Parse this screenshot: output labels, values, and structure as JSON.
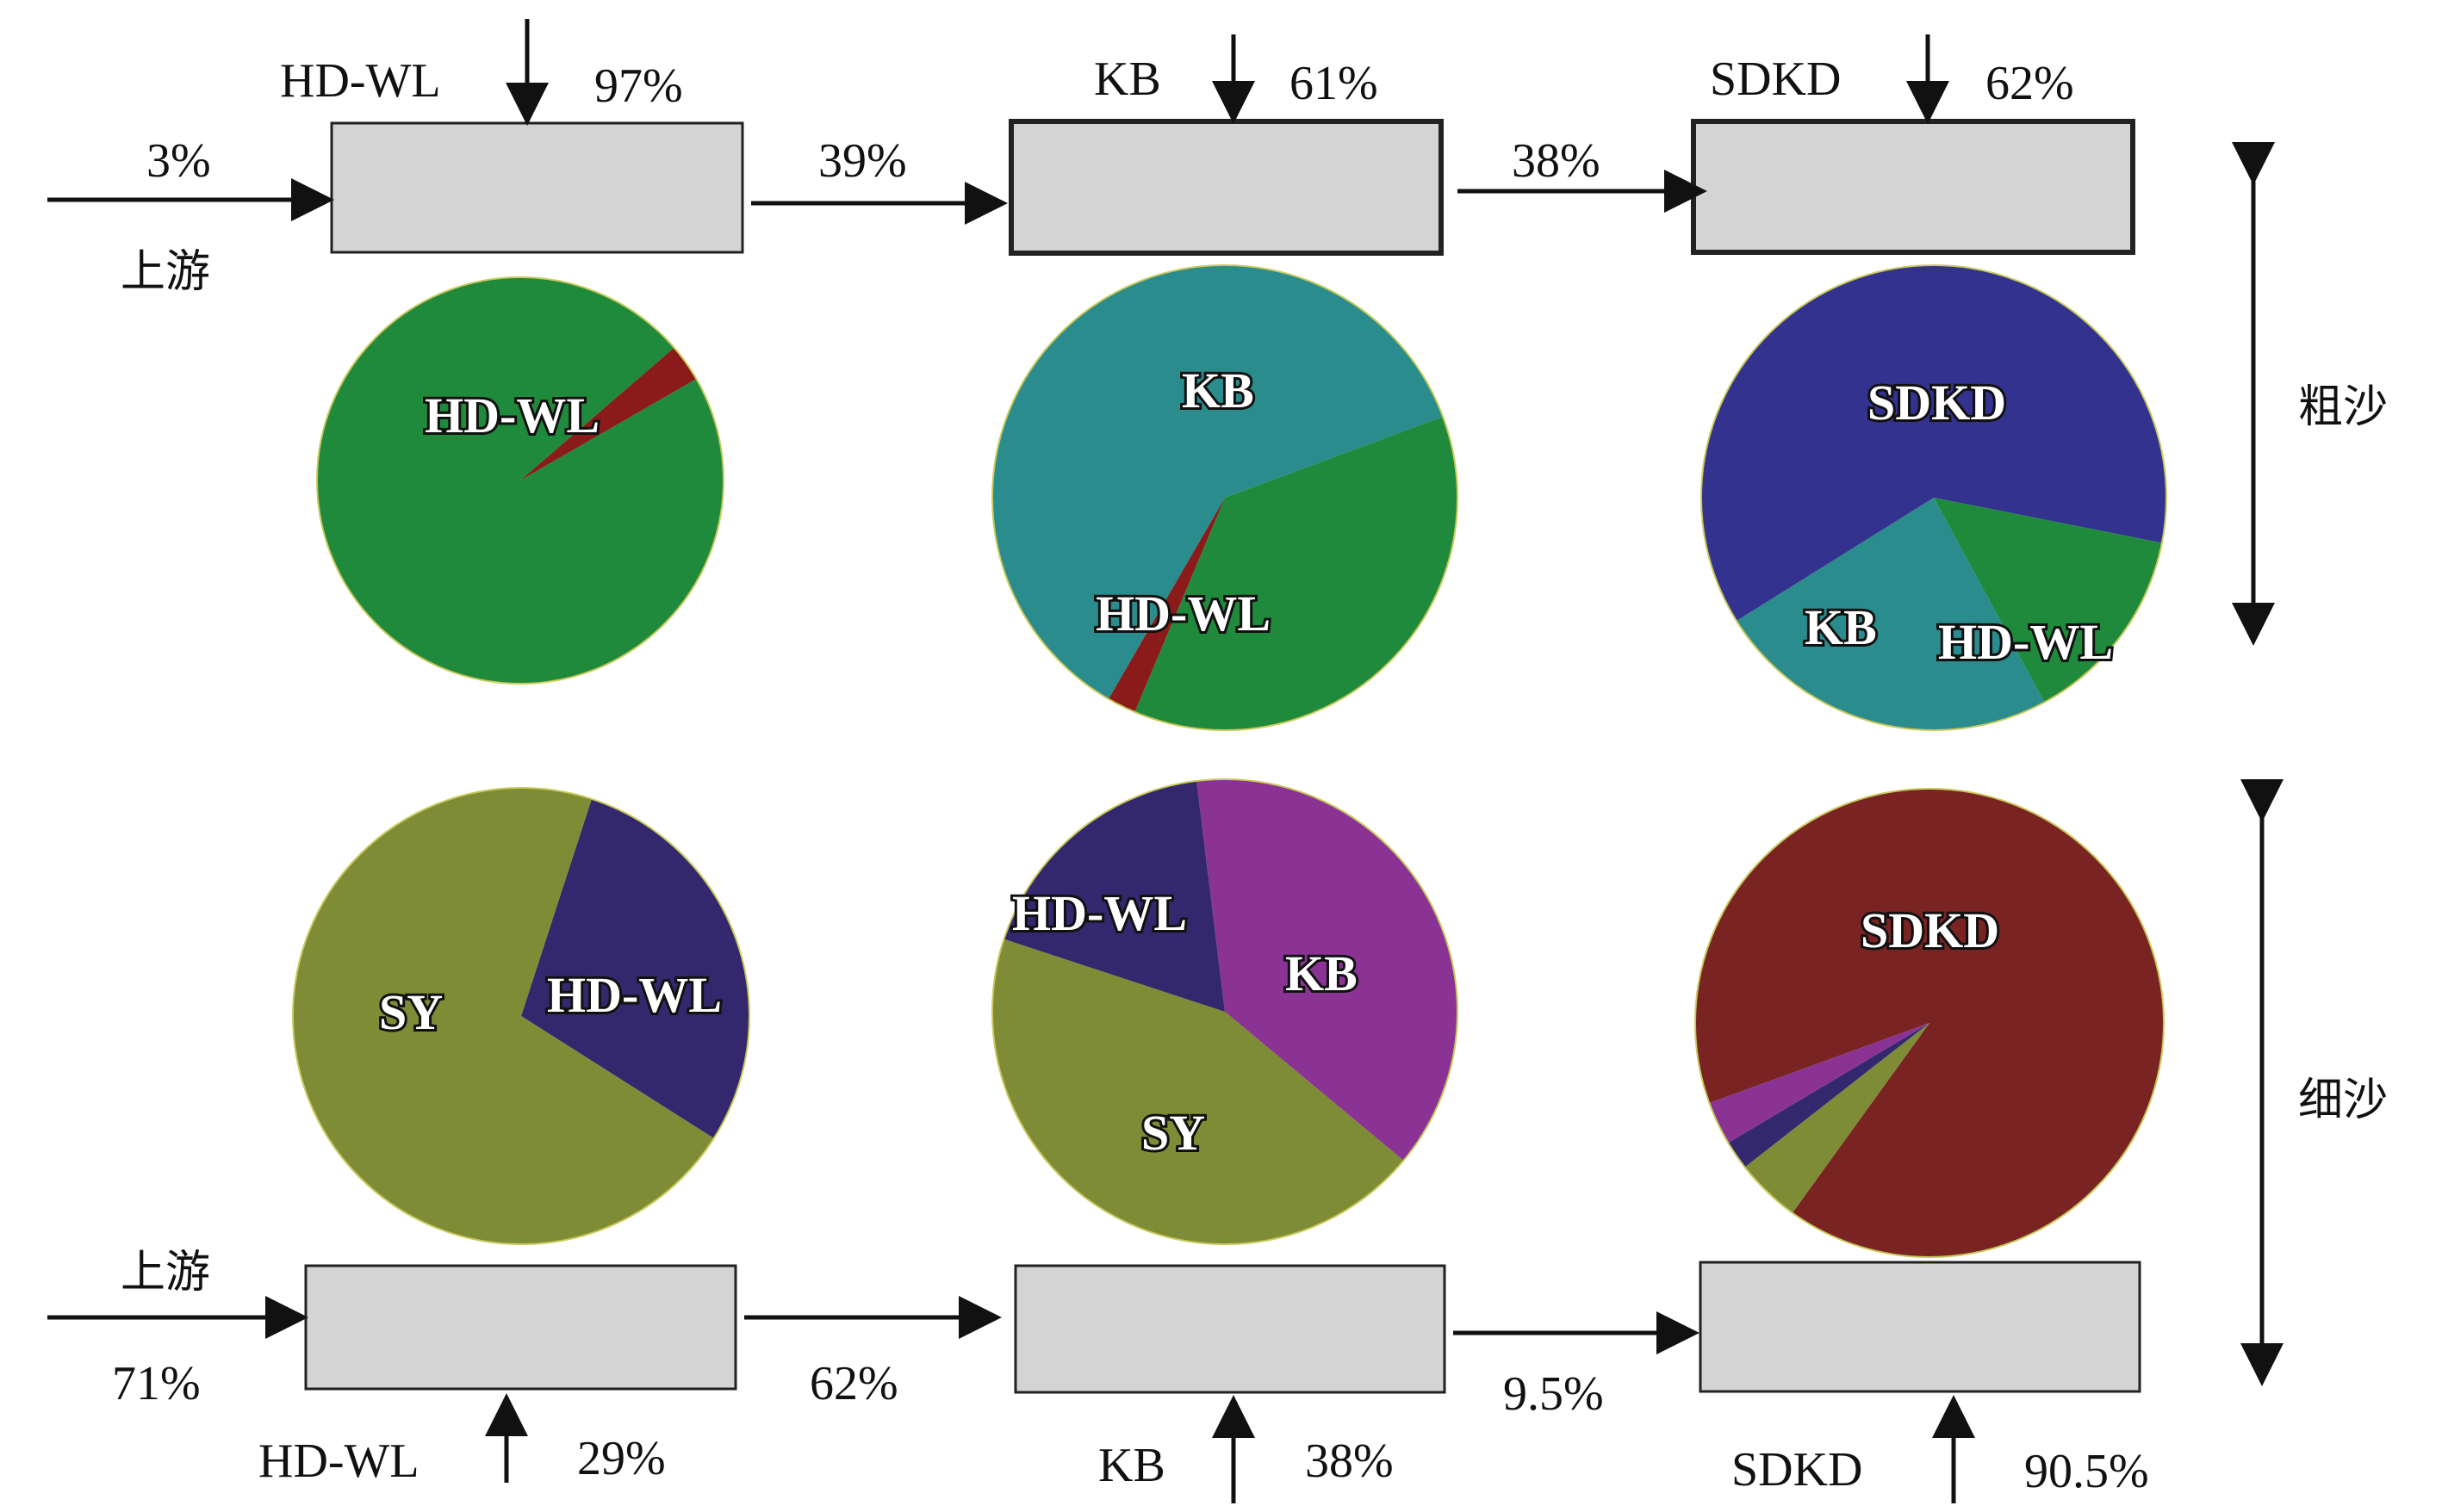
{
  "coarse": {
    "side_label": "粗沙",
    "upstream_label": "上游",
    "upstream_pct": "3%",
    "stations": [
      {
        "name": "HD-WL",
        "input_pct": "97%"
      },
      {
        "name": "KB",
        "input_pct": "61%"
      },
      {
        "name": "SDKD",
        "input_pct": "62%"
      }
    ],
    "transfer_pcts": [
      "39%",
      "38%"
    ],
    "pies": [
      {
        "labels": [
          "HD-WL"
        ],
        "slices": [
          {
            "name": "HD-WL",
            "value": 97,
            "color": "#1f8a3c"
          },
          {
            "name": "upstream",
            "value": 3,
            "color": "#8b1a1a"
          }
        ]
      },
      {
        "labels": [
          "KB",
          "HD-WL"
        ],
        "slices": [
          {
            "name": "KB",
            "value": 61,
            "color": "#2a8c8c"
          },
          {
            "name": "HD-WL",
            "value": 37,
            "color": "#1f8a3c"
          },
          {
            "name": "upstream",
            "value": 2,
            "color": "#8b1a1a"
          }
        ]
      },
      {
        "labels": [
          "SDKD",
          "KB",
          "HD-WL"
        ],
        "slices": [
          {
            "name": "SDKD",
            "value": 62,
            "color": "#33328f"
          },
          {
            "name": "HD-WL",
            "value": 14,
            "color": "#1f8a3c"
          },
          {
            "name": "KB",
            "value": 24,
            "color": "#2a8c8c"
          }
        ]
      }
    ]
  },
  "fine": {
    "side_label": "细沙",
    "upstream_label": "上游",
    "upstream_pct": "71%",
    "stations": [
      {
        "name": "HD-WL",
        "input_pct": "29%"
      },
      {
        "name": "KB",
        "input_pct": "38%"
      },
      {
        "name": "SDKD",
        "input_pct": "90.5%"
      }
    ],
    "transfer_pcts": [
      "62%",
      "9.5%"
    ],
    "pies": [
      {
        "labels": [
          "SY",
          "HD-WL"
        ],
        "slices": [
          {
            "name": "HD-WL",
            "value": 29,
            "color": "#33286e"
          },
          {
            "name": "SY",
            "value": 71,
            "color": "#7f8c36"
          }
        ]
      },
      {
        "labels": [
          "HD-WL",
          "KB",
          "SY"
        ],
        "slices": [
          {
            "name": "KB",
            "value": 38,
            "color": "#8a3395"
          },
          {
            "name": "SY",
            "value": 44,
            "color": "#7f8c36"
          },
          {
            "name": "HD-WL",
            "value": 18,
            "color": "#33286e"
          }
        ]
      },
      {
        "labels": [
          "SDKD"
        ],
        "slices": [
          {
            "name": "SDKD",
            "value": 90.5,
            "color": "#7a2323"
          },
          {
            "name": "SY",
            "value": 4.5,
            "color": "#7f8c36"
          },
          {
            "name": "HD-WL",
            "value": 2,
            "color": "#33286e"
          },
          {
            "name": "KB",
            "value": 3,
            "color": "#8a3395"
          }
        ]
      }
    ]
  }
}
